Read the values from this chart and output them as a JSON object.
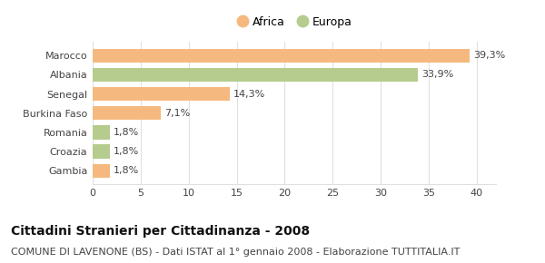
{
  "categories": [
    "Gambia",
    "Croazia",
    "Romania",
    "Burkina Faso",
    "Senegal",
    "Albania",
    "Marocco"
  ],
  "values": [
    1.8,
    1.8,
    1.8,
    7.1,
    14.3,
    33.9,
    39.3
  ],
  "labels": [
    "1,8%",
    "1,8%",
    "1,8%",
    "7,1%",
    "14,3%",
    "33,9%",
    "39,3%"
  ],
  "colors": [
    "#f5b97f",
    "#b5cc8e",
    "#b5cc8e",
    "#f5b97f",
    "#f5b97f",
    "#b5cc8e",
    "#f5b97f"
  ],
  "legend_labels": [
    "Africa",
    "Europa"
  ],
  "legend_colors": [
    "#f5b97f",
    "#b5cc8e"
  ],
  "title": "Cittadini Stranieri per Cittadinanza - 2008",
  "subtitle": "COMUNE DI LAVENONE (BS) - Dati ISTAT al 1° gennaio 2008 - Elaborazione TUTTITALIA.IT",
  "xlim": [
    0,
    42
  ],
  "xticks": [
    0,
    5,
    10,
    15,
    20,
    25,
    30,
    35,
    40
  ],
  "background_color": "#ffffff",
  "grid_color": "#e0e0e0",
  "bar_height": 0.72,
  "title_fontsize": 10,
  "subtitle_fontsize": 8,
  "label_fontsize": 8,
  "tick_fontsize": 8,
  "legend_fontsize": 9
}
